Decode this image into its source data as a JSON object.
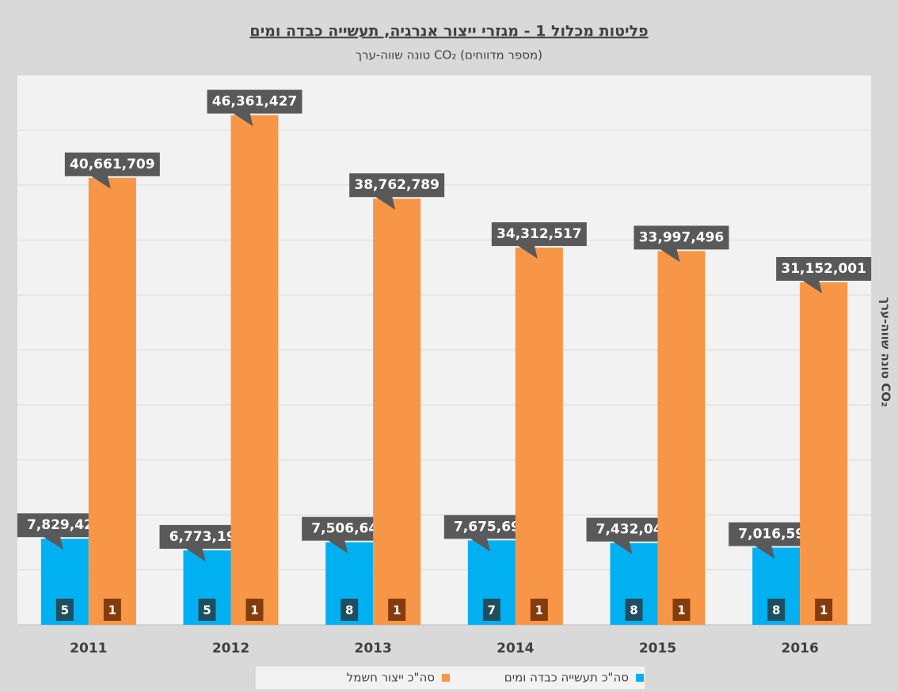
{
  "chart_data": {
    "type": "bar",
    "title": "פליטות מכלול 1 - מגזרי ייצור אנרגיה, תעשייה כבדה ומים",
    "subtitle": "טונה שווה-ערך CO₂ (מספר מדווחים)",
    "y_label": "טונה שווה-ערך CO₂",
    "categories": [
      "2011",
      "2012",
      "2013",
      "2014",
      "2015",
      "2016"
    ],
    "series": [
      {
        "name": "סה\"כ תעשייה כבדה ומים",
        "color": "#00b0f0",
        "count_color": "#1f4e5f",
        "values": [
          7829425,
          6773195,
          7506640,
          7675694,
          7432044,
          7016590
        ],
        "value_labels": [
          "7,829,425",
          "6,773,195",
          "7,506,640",
          "7,675,694",
          "7,432,044",
          "7,016,590"
        ],
        "counts": [
          5,
          5,
          8,
          7,
          8,
          8
        ]
      },
      {
        "name": "סה\"כ ייצור חשמל",
        "color": "#f79646",
        "count_color": "#843c0c",
        "values": [
          40661709,
          46361427,
          38762789,
          34312517,
          33997496,
          31152001
        ],
        "value_labels": [
          "40,661,709",
          "46,361,427",
          "38,762,789",
          "34,312,517",
          "33,997,496",
          "31,152,001"
        ],
        "counts": [
          1,
          1,
          1,
          1,
          1,
          1
        ]
      }
    ],
    "ylim": [
      0,
      50000000
    ],
    "yticks": [
      0,
      5000000,
      10000000,
      15000000,
      20000000,
      25000000,
      30000000,
      35000000,
      40000000,
      45000000,
      50000000
    ],
    "grid": true,
    "legend": "bottom"
  }
}
